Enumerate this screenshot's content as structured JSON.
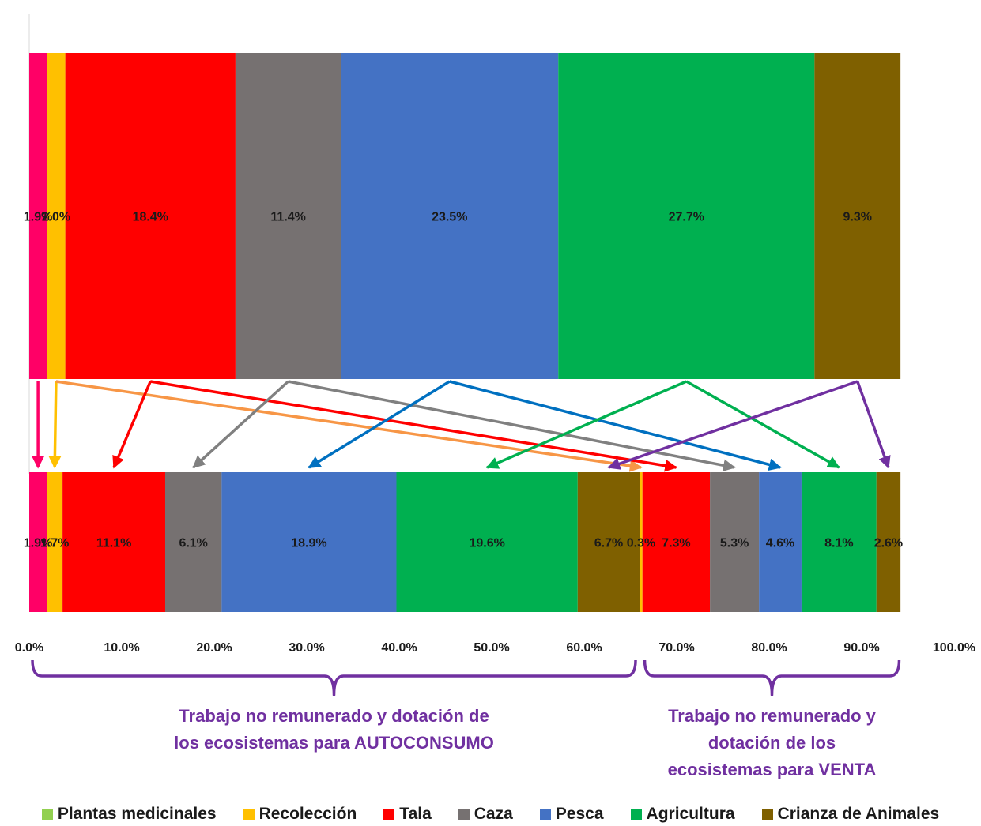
{
  "chart_data": {
    "type": "bar",
    "orientation": "horizontal",
    "stacked": true,
    "x_ticks": [
      "0.0%",
      "10.0%",
      "20.0%",
      "30.0%",
      "40.0%",
      "50.0%",
      "60.0%",
      "70.0%",
      "80.0%",
      "90.0%",
      "100.0%"
    ],
    "xlim": [
      0,
      100
    ],
    "legend_position": "bottom",
    "series": [
      {
        "name": "Plantas medicinales",
        "color": "#92d050"
      },
      {
        "name": "Recolección",
        "color": "#ffc000"
      },
      {
        "name": "Tala",
        "color": "#ff0000"
      },
      {
        "name": "Caza",
        "color": "#767171"
      },
      {
        "name": "Pesca",
        "color": "#4472c4"
      },
      {
        "name": "Agricultura",
        "color": "#00b050"
      },
      {
        "name": "Crianza de Animales",
        "color": "#7f6000"
      }
    ],
    "bars": [
      {
        "segments": [
          {
            "value": 1.9,
            "label": "1.9%",
            "color": "#ff0066"
          },
          {
            "value": 2.0,
            "label": "2.0%",
            "color": "#ffc000"
          },
          {
            "value": 18.4,
            "label": "18.4%",
            "color": "#ff0000"
          },
          {
            "value": 11.4,
            "label": "11.4%",
            "color": "#767171"
          },
          {
            "value": 23.5,
            "label": "23.5%",
            "color": "#4472c4"
          },
          {
            "value": 27.7,
            "label": "27.7%",
            "color": "#00b050"
          },
          {
            "value": 9.3,
            "label": "9.3%",
            "color": "#7f6000"
          }
        ]
      },
      {
        "segments": [
          {
            "value": 1.9,
            "label": "1.9%",
            "color": "#ff0066"
          },
          {
            "value": 1.7,
            "label": "1.7%",
            "color": "#ffc000"
          },
          {
            "value": 11.1,
            "label": "11.1%",
            "color": "#ff0000"
          },
          {
            "value": 6.1,
            "label": "6.1%",
            "color": "#767171"
          },
          {
            "value": 18.9,
            "label": "18.9%",
            "color": "#4472c4"
          },
          {
            "value": 19.6,
            "label": "19.6%",
            "color": "#00b050"
          },
          {
            "value": 6.7,
            "label": "6.7%",
            "color": "#7f6000"
          },
          {
            "value": 0.3,
            "label": "0.3%",
            "color": "#ffc000"
          },
          {
            "value": 7.3,
            "label": "7.3%",
            "color": "#ff0000"
          },
          {
            "value": 5.3,
            "label": "5.3%",
            "color": "#767171"
          },
          {
            "value": 4.6,
            "label": "4.6%",
            "color": "#4472c4"
          },
          {
            "value": 8.1,
            "label": "8.1%",
            "color": "#00b050"
          },
          {
            "value": 2.6,
            "label": "2.6%",
            "color": "#7f6000"
          }
        ]
      }
    ],
    "groups": [
      {
        "label_lines": [
          "Trabajo no remunerado y dotación de",
          "los ecosistemas para AUTOCONSUMO"
        ],
        "from": 0,
        "to": 65.9
      },
      {
        "label_lines": [
          "Trabajo no remunerado y",
          "dotación de los",
          "ecosistemas para VENTA"
        ],
        "from": 66.2,
        "to": 94.4
      }
    ],
    "arrows": [
      {
        "from_segment": 0,
        "to_segment": 0,
        "color": "#ff0066"
      },
      {
        "from_segment": 1,
        "to_segment": 1,
        "color": "#ffc000"
      },
      {
        "from_segment": 1,
        "to_segment": 7,
        "color": "#f79646"
      },
      {
        "from_segment": 2,
        "to_segment": 2,
        "color": "#ff0000"
      },
      {
        "from_segment": 2,
        "to_segment": 8,
        "color": "#ff0000"
      },
      {
        "from_segment": 3,
        "to_segment": 3,
        "color": "#808080"
      },
      {
        "from_segment": 3,
        "to_segment": 9,
        "color": "#808080"
      },
      {
        "from_segment": 4,
        "to_segment": 4,
        "color": "#0070c0"
      },
      {
        "from_segment": 4,
        "to_segment": 10,
        "color": "#0070c0"
      },
      {
        "from_segment": 5,
        "to_segment": 5,
        "color": "#00b050"
      },
      {
        "from_segment": 5,
        "to_segment": 11,
        "color": "#00b050"
      },
      {
        "from_segment": 6,
        "to_segment": 6,
        "color": "#7030a0"
      },
      {
        "from_segment": 6,
        "to_segment": 12,
        "color": "#7030a0"
      }
    ],
    "brace_color": "#7030a0",
    "group_label_color": "#7030a0"
  }
}
